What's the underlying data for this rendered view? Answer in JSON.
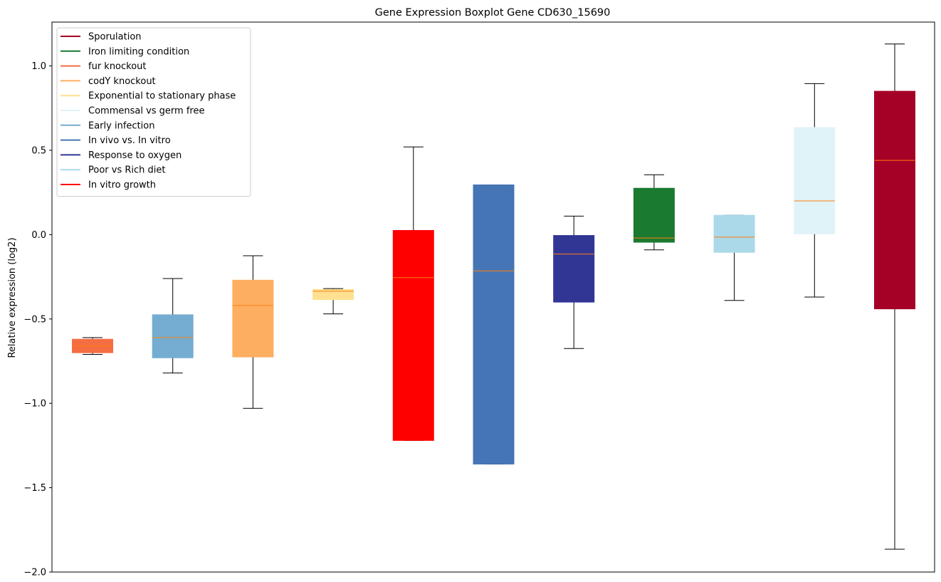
{
  "chart_data": {
    "type": "boxplot",
    "title": "Gene Expression Boxplot Gene CD630_15690",
    "xlabel": "",
    "ylabel": "Relative expression (log2)",
    "ylim": [
      -2.0,
      1.26
    ],
    "yticks": [
      -2.0,
      -1.5,
      -1.0,
      -0.5,
      0.0,
      0.5,
      1.0
    ],
    "ytick_labels": [
      "−2.0",
      "−1.5",
      "−1.0",
      "−0.5",
      "0.0",
      "0.5",
      "1.0"
    ],
    "grid": false,
    "legend_position": "upper-left",
    "median_color": "#ff7f0e",
    "legend": [
      {
        "label": "Sporulation",
        "color": "#a50026"
      },
      {
        "label": "Iron limiting condition",
        "color": "#1a7a30"
      },
      {
        "label": "fur knockout",
        "color": "#f46d43"
      },
      {
        "label": "codY knockout",
        "color": "#fdae61"
      },
      {
        "label": "Exponential to stationary phase",
        "color": "#fee090"
      },
      {
        "label": "Commensal vs germ free",
        "color": "#e0f3f8"
      },
      {
        "label": "Early infection",
        "color": "#74add1"
      },
      {
        "label": "In vivo vs. In vitro",
        "color": "#4575b4"
      },
      {
        "label": "Response to oxygen",
        "color": "#313695"
      },
      {
        "label": "Poor vs Rich diet",
        "color": "#abd9e9"
      },
      {
        "label": "In vitro growth",
        "color": "#ff0000"
      }
    ],
    "boxes": [
      {
        "condition": "fur knockout",
        "color": "#f46d43",
        "whisker_low": -0.71,
        "q1": -0.7,
        "median": -0.66,
        "q3": -0.62,
        "whisker_high": -0.61
      },
      {
        "condition": "Early infection",
        "color": "#74add1",
        "whisker_low": -0.82,
        "q1": -0.73,
        "median": -0.61,
        "q3": -0.475,
        "whisker_high": -0.26
      },
      {
        "condition": "codY knockout",
        "color": "#fdae61",
        "whisker_low": -1.03,
        "q1": -0.725,
        "median": -0.42,
        "q3": -0.27,
        "whisker_high": -0.125
      },
      {
        "condition": "Exponential to stationary phase",
        "color": "#fee090",
        "whisker_low": -0.47,
        "q1": -0.385,
        "median": -0.335,
        "q3": -0.325,
        "whisker_high": -0.32
      },
      {
        "condition": "In vitro growth",
        "color": "#ff0000",
        "whisker_low": -1.22,
        "q1": -1.22,
        "median": -0.255,
        "q3": 0.025,
        "whisker_high": 0.52
      },
      {
        "condition": "In vivo vs. In vitro",
        "color": "#4575b4",
        "whisker_low": -1.36,
        "q1": -1.36,
        "median": -0.215,
        "q3": 0.295,
        "whisker_high": 0.295
      },
      {
        "condition": "Response to oxygen",
        "color": "#313695",
        "whisker_low": -0.675,
        "q1": -0.4,
        "median": -0.115,
        "q3": -0.005,
        "whisker_high": 0.11
      },
      {
        "condition": "Iron limiting condition",
        "color": "#1a7a30",
        "whisker_low": -0.09,
        "q1": -0.045,
        "median": -0.02,
        "q3": 0.275,
        "whisker_high": 0.355
      },
      {
        "condition": "Poor vs Rich diet",
        "color": "#abd9e9",
        "whisker_low": -0.39,
        "q1": -0.105,
        "median": -0.015,
        "q3": 0.115,
        "whisker_high": 0.115
      },
      {
        "condition": "Commensal vs germ free",
        "color": "#e0f3f8",
        "whisker_low": -0.37,
        "q1": 0.005,
        "median": 0.2,
        "q3": 0.635,
        "whisker_high": 0.895
      },
      {
        "condition": "Sporulation",
        "color": "#a50026",
        "whisker_low": -1.865,
        "q1": -0.44,
        "median": 0.44,
        "q3": 0.85,
        "whisker_high": 1.13
      }
    ]
  }
}
